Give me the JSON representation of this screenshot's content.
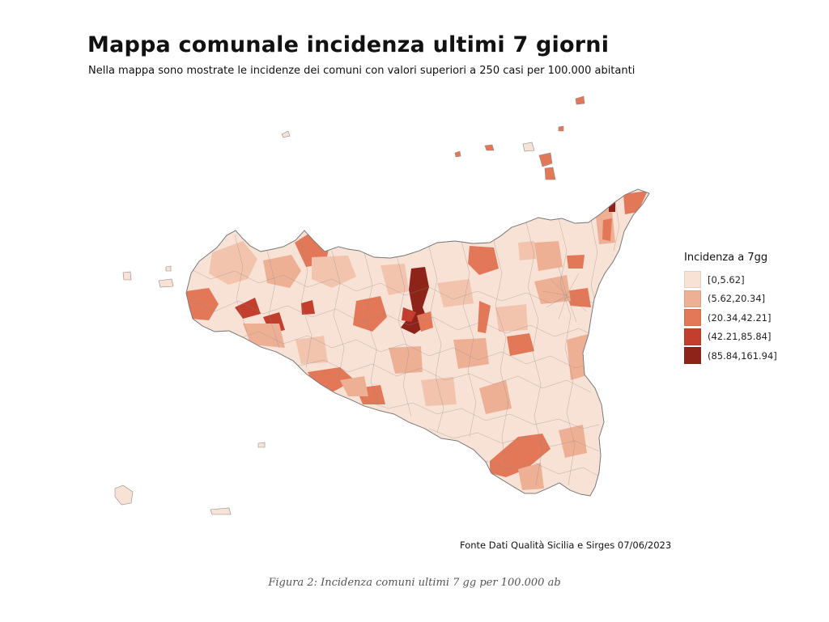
{
  "figure": {
    "title": "Mappa comunale incidenza ultimi 7 giorni",
    "subtitle": "Nella mappa sono mostrate le incidenze dei comuni con valori superiori a 250 casi per 100.000 abitanti",
    "source": "Fonte Dati Qualità Sicilia e Sirges 07/06/2023",
    "caption": "Figura 2: Incidenza comuni ultimi 7 gg per 100.000 ab"
  },
  "legend": {
    "title": "Incidenza a 7gg",
    "classes": [
      {
        "label": "[0,5.62]",
        "color": "#f8e2d6"
      },
      {
        "label": "(5.62,20.34]",
        "color": "#eeb095"
      },
      {
        "label": "(20.34,42.21]",
        "color": "#e27858"
      },
      {
        "label": "(42.21,85.84]",
        "color": "#c33e2c"
      },
      {
        "label": "(85.84,161.94]",
        "color": "#8e2419"
      }
    ]
  },
  "colors": {
    "background": "#ffffff",
    "region_border": "#8a8a8a"
  }
}
